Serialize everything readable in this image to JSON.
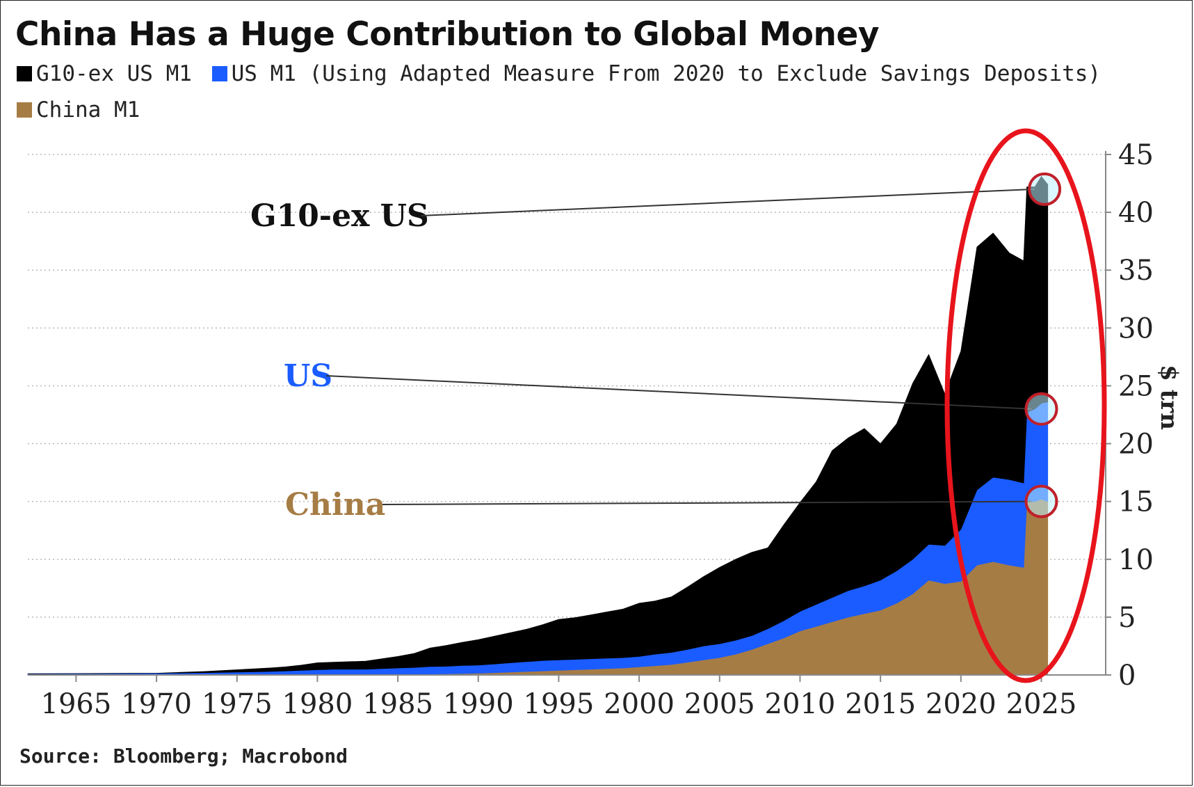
{
  "title": "China Has a Huge Contribution to Global Money",
  "legend": [
    {
      "label": "G10-ex US M1",
      "color": "#000000"
    },
    {
      "label": "US M1 (Using Adapted Measure From 2020 to Exclude Savings Deposits)",
      "color": "#1a5cff"
    },
    {
      "label": "China M1",
      "color": "#a67c45"
    }
  ],
  "source": "Source: Bloomberg; Macrobond",
  "annotations": {
    "g10": "G10-ex US",
    "us": "US",
    "china": "China"
  },
  "colors": {
    "g10": "#000000",
    "us": "#1a5cff",
    "china": "#a67c45",
    "highlight": "#e8141c"
  },
  "chart_data": {
    "type": "area",
    "stacked": true,
    "xlabel": "",
    "ylabel": "$ trn",
    "xlim": [
      1962,
      2029
    ],
    "ylim": [
      0,
      45
    ],
    "x_ticks": [
      1965,
      1970,
      1975,
      1980,
      1985,
      1990,
      1995,
      2000,
      2005,
      2010,
      2015,
      2020,
      2025
    ],
    "y_ticks": [
      0,
      5,
      10,
      15,
      20,
      25,
      30,
      35,
      40,
      45
    ],
    "y_axis_position": "right",
    "grid": true,
    "legend_position": "top",
    "x": [
      1962,
      1965,
      1970,
      1973,
      1975,
      1977,
      1978,
      1979,
      1980,
      1981,
      1983,
      1985,
      1986,
      1987,
      1988,
      1989,
      1990,
      1991,
      1992,
      1993,
      1994,
      1995,
      1996,
      1997,
      1998,
      1999,
      2000,
      2001,
      2002,
      2003,
      2004,
      2005,
      2006,
      2007,
      2008,
      2009,
      2010,
      2011,
      2012,
      2013,
      2014,
      2015,
      2016,
      2017,
      2018,
      2019,
      2020,
      2021,
      2022,
      2023,
      2023.9,
      2024.1,
      2024.6,
      2025.0,
      2025.4
    ],
    "series": [
      {
        "name": "China M1",
        "values": [
          0,
          0,
          0,
          0,
          0,
          0,
          0,
          0,
          0,
          0,
          0,
          0,
          0.05,
          0.08,
          0.1,
          0.12,
          0.15,
          0.2,
          0.25,
          0.3,
          0.35,
          0.4,
          0.45,
          0.5,
          0.55,
          0.6,
          0.7,
          0.8,
          0.9,
          1.1,
          1.3,
          1.5,
          1.8,
          2.2,
          2.7,
          3.2,
          3.8,
          4.2,
          4.6,
          5.0,
          5.3,
          5.6,
          6.2,
          7.0,
          8.2,
          7.9,
          8.1,
          9.5,
          9.8,
          9.5,
          9.3,
          15.0,
          15.0,
          15.2,
          15.0
        ]
      },
      {
        "name": "US M1",
        "values": [
          0.1,
          0.12,
          0.15,
          0.2,
          0.25,
          0.3,
          0.35,
          0.4,
          0.45,
          0.5,
          0.5,
          0.6,
          0.6,
          0.65,
          0.65,
          0.7,
          0.7,
          0.75,
          0.8,
          0.85,
          0.9,
          0.9,
          0.9,
          0.9,
          0.9,
          0.9,
          0.9,
          1.0,
          1.05,
          1.1,
          1.2,
          1.2,
          1.2,
          1.2,
          1.3,
          1.5,
          1.7,
          1.9,
          2.1,
          2.3,
          2.4,
          2.6,
          2.8,
          3.0,
          3.1,
          3.3,
          4.5,
          6.5,
          7.3,
          7.4,
          7.3,
          7.7,
          8.0,
          8.3,
          8.6
        ]
      },
      {
        "name": "G10-ex US M1",
        "values": [
          0,
          0,
          0,
          0.1,
          0.2,
          0.3,
          0.35,
          0.45,
          0.6,
          0.6,
          0.7,
          1.0,
          1.2,
          1.6,
          1.8,
          2.0,
          2.2,
          2.4,
          2.6,
          2.8,
          3.1,
          3.5,
          3.6,
          3.8,
          4.0,
          4.2,
          4.6,
          4.6,
          4.8,
          5.4,
          6.0,
          6.6,
          7.0,
          7.2,
          7.0,
          8.3,
          9.4,
          10.6,
          12.7,
          13.2,
          13.6,
          11.8,
          12.7,
          15.2,
          16.4,
          13.1,
          15.4,
          21.0,
          21.1,
          19.6,
          19.2,
          19.5,
          19.2,
          19.6,
          18.8
        ]
      }
    ]
  }
}
